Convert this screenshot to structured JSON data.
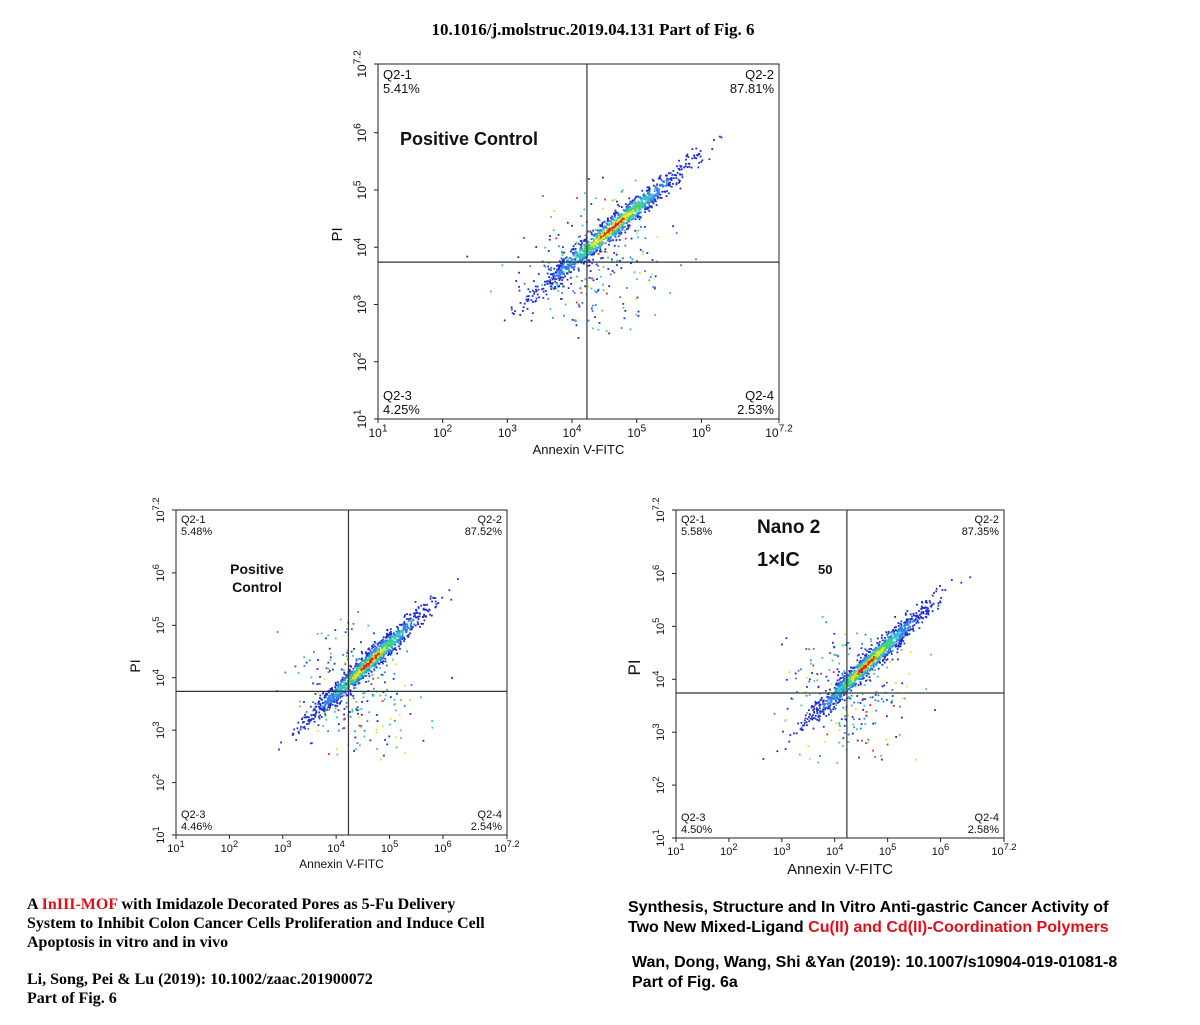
{
  "header": "10.1016/j.molstruc.2019.04.131  Part of Fig. 6",
  "panels": [
    {
      "id": "top",
      "quadrants": {
        "q1_label": "Q2-1",
        "q1_pct": "5.41%",
        "q2_label": "Q2-2",
        "q2_pct": "87.81%",
        "q3_label": "Q2-3",
        "q3_pct": "4.25%",
        "q4_label": "Q2-4",
        "q4_pct": "2.53%"
      },
      "annotation_lines": [
        "Positive Control"
      ],
      "xlabel": "Annexin V-FITC",
      "ylabel": "PI"
    },
    {
      "id": "bottom-left",
      "quadrants": {
        "q1_label": "Q2-1",
        "q1_pct": "5.48%",
        "q2_label": "Q2-2",
        "q2_pct": "87.52%",
        "q3_label": "Q2-3",
        "q3_pct": "4.46%",
        "q4_label": "Q2-4",
        "q4_pct": "2.54%"
      },
      "annotation_lines": [
        "Positive",
        "Control"
      ],
      "xlabel": "Annexin V-FITC",
      "ylabel": "PI"
    },
    {
      "id": "bottom-right",
      "quadrants": {
        "q1_label": "Q2-1",
        "q1_pct": "5.58%",
        "q2_label": "Q2-2",
        "q2_pct": "87.35%",
        "q3_label": "Q2-3",
        "q3_pct": "4.50%",
        "q4_label": "Q2-4",
        "q4_pct": "2.58%"
      },
      "annotation_lines": [
        "Nano 2",
        "1×IC",
        "50"
      ],
      "xlabel": "Annexin V-FITC",
      "ylabel": "PI"
    }
  ],
  "axis_ticks": {
    "bases": [
      "10",
      "10",
      "10",
      "10",
      "10",
      "10",
      "10"
    ],
    "exponents": [
      "1",
      "2",
      "3",
      "4",
      "5",
      "6",
      "7.2"
    ]
  },
  "chart_data": [
    {
      "type": "scatter",
      "title": "",
      "xlabel": "Annexin V-FITC",
      "ylabel": "PI",
      "x_scale": "log10",
      "y_scale": "log10",
      "xlim": [
        10,
        15848932
      ],
      "ylim": [
        10,
        15848932
      ],
      "x_gate": 17000,
      "y_gate": 5500,
      "quadrant_percent": {
        "Q2-1": 5.41,
        "Q2-2": 87.81,
        "Q2-3": 4.25,
        "Q2-4": 2.53
      },
      "density_center": [
        40000,
        22000
      ],
      "colormap": [
        "#1a2bd6",
        "#2e7fe8",
        "#35c4c2",
        "#43d36a",
        "#e6e21e",
        "#e8241c"
      ]
    },
    {
      "type": "scatter",
      "title": "",
      "xlabel": "Annexin V-FITC",
      "ylabel": "PI",
      "x_scale": "log10",
      "y_scale": "log10",
      "xlim": [
        10,
        15848932
      ],
      "ylim": [
        10,
        15848932
      ],
      "x_gate": 17000,
      "y_gate": 5500,
      "quadrant_percent": {
        "Q2-1": 5.48,
        "Q2-2": 87.52,
        "Q2-3": 4.46,
        "Q2-4": 2.54
      },
      "density_center": [
        40000,
        20000
      ],
      "colormap": [
        "#1a2bd6",
        "#2e7fe8",
        "#35c4c2",
        "#43d36a",
        "#e6e21e",
        "#e8241c"
      ]
    },
    {
      "type": "scatter",
      "title": "",
      "xlabel": "Annexin V-FITC",
      "ylabel": "PI",
      "x_scale": "log10",
      "y_scale": "log10",
      "xlim": [
        10,
        15848932
      ],
      "ylim": [
        10,
        15848932
      ],
      "x_gate": 17000,
      "y_gate": 5500,
      "quadrant_percent": {
        "Q2-1": 5.58,
        "Q2-2": 87.35,
        "Q2-3": 4.5,
        "Q2-4": 2.58
      },
      "density_center": [
        40000,
        20000
      ],
      "colormap": [
        "#1a2bd6",
        "#2e7fe8",
        "#35c4c2",
        "#43d36a",
        "#e6e21e",
        "#e8241c"
      ]
    }
  ],
  "captions": {
    "left": {
      "title_parts": [
        "A ",
        "InIII-MOF",
        " with Imidazole Decorated Pores as 5-Fu Delivery"
      ],
      "title_line2": "System to Inhibit Colon Cancer Cells Proliferation and Induce Cell",
      "title_line3": "Apoptosis in vitro and in vivo",
      "citation": "Li, Song, Pei & Lu (2019): 10.1002/zaac.201900072",
      "part": "Part of Fig. 6"
    },
    "right": {
      "title_line1": "Synthesis, Structure and In Vitro Anti-gastric Cancer Activity of",
      "title_line2_parts": [
        "Two New Mixed-Ligand ",
        "Cu(II) and Cd(II)-Coordination Polymers"
      ],
      "citation": "Wan, Dong, Wang, Shi &Yan (2019): 10.1007/s10904-019-01081-8",
      "part": "Part of Fig. 6a"
    }
  }
}
